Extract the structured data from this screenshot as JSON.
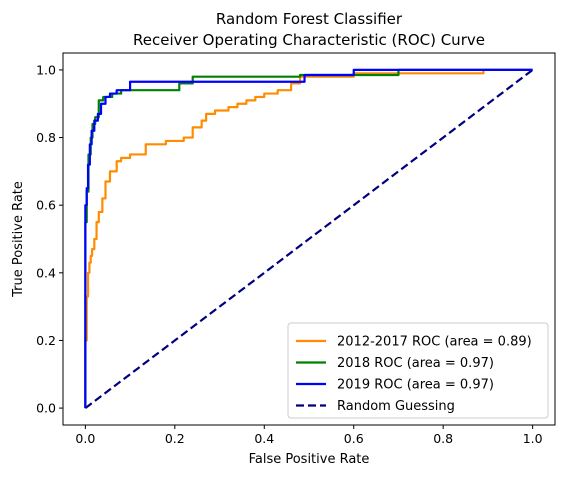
{
  "chart_data": {
    "type": "line",
    "title": [
      "Random Forest Classifier",
      "Receiver Operating Characteristic (ROC) Curve"
    ],
    "xlabel": "False Positive Rate",
    "ylabel": "True Positive Rate",
    "xlim": [
      -0.05,
      1.05
    ],
    "ylim": [
      -0.05,
      1.05
    ],
    "xticks": [
      0.0,
      0.2,
      0.4,
      0.6,
      0.8,
      1.0
    ],
    "xtick_labels": [
      "0.0",
      "0.2",
      "0.4",
      "0.6",
      "0.8",
      "1.0"
    ],
    "yticks": [
      0.0,
      0.2,
      0.4,
      0.6,
      0.8,
      1.0
    ],
    "ytick_labels": [
      "0.0",
      "0.2",
      "0.4",
      "0.6",
      "0.8",
      "1.0"
    ],
    "grid": false,
    "legend_position": "bottom-right",
    "series": [
      {
        "name": "2012-2017 ROC (area = 0.89)",
        "color": "#ff8c00",
        "style": "solid",
        "x": [
          0,
          0,
          0.003,
          0.003,
          0.006,
          0.006,
          0.009,
          0.009,
          0.012,
          0.012,
          0.015,
          0.015,
          0.02,
          0.02,
          0.025,
          0.025,
          0.03,
          0.03,
          0.038,
          0.038,
          0.045,
          0.045,
          0.055,
          0.055,
          0.07,
          0.07,
          0.08,
          0.08,
          0.1,
          0.1,
          0.135,
          0.135,
          0.18,
          0.18,
          0.22,
          0.22,
          0.24,
          0.24,
          0.26,
          0.26,
          0.27,
          0.27,
          0.29,
          0.29,
          0.32,
          0.32,
          0.34,
          0.34,
          0.36,
          0.36,
          0.38,
          0.38,
          0.4,
          0.4,
          0.43,
          0.43,
          0.46,
          0.46,
          0.48,
          0.48,
          0.6,
          0.6,
          0.7,
          0.7,
          0.89,
          0.89,
          1.0
        ],
        "y": [
          0,
          0.2,
          0.2,
          0.33,
          0.33,
          0.4,
          0.4,
          0.43,
          0.43,
          0.45,
          0.45,
          0.47,
          0.47,
          0.5,
          0.5,
          0.55,
          0.55,
          0.58,
          0.58,
          0.62,
          0.62,
          0.67,
          0.67,
          0.7,
          0.7,
          0.73,
          0.73,
          0.74,
          0.74,
          0.75,
          0.75,
          0.78,
          0.78,
          0.79,
          0.79,
          0.8,
          0.8,
          0.83,
          0.83,
          0.85,
          0.85,
          0.87,
          0.87,
          0.88,
          0.88,
          0.89,
          0.89,
          0.9,
          0.9,
          0.91,
          0.91,
          0.92,
          0.92,
          0.93,
          0.93,
          0.94,
          0.94,
          0.96,
          0.96,
          0.98,
          0.98,
          0.99,
          0.99,
          0.99,
          0.99,
          1.0,
          1.0
        ]
      },
      {
        "name": "2018 ROC (area = 0.97)",
        "color": "#008000",
        "style": "solid",
        "x": [
          0,
          0,
          0.003,
          0.003,
          0.007,
          0.007,
          0.012,
          0.012,
          0.016,
          0.016,
          0.022,
          0.022,
          0.03,
          0.03,
          0.04,
          0.04,
          0.06,
          0.06,
          0.08,
          0.08,
          0.21,
          0.21,
          0.24,
          0.24,
          0.48,
          0.48,
          0.7,
          0.7,
          1.0
        ],
        "y": [
          0,
          0.55,
          0.55,
          0.64,
          0.64,
          0.75,
          0.75,
          0.8,
          0.8,
          0.84,
          0.84,
          0.86,
          0.86,
          0.91,
          0.91,
          0.92,
          0.92,
          0.93,
          0.93,
          0.94,
          0.94,
          0.96,
          0.96,
          0.98,
          0.98,
          0.985,
          0.985,
          1.0,
          1.0
        ]
      },
      {
        "name": "2019 ROC (area = 0.97)",
        "color": "#0000ff",
        "style": "solid",
        "x": [
          0,
          0,
          0.003,
          0.003,
          0.006,
          0.006,
          0.01,
          0.01,
          0.014,
          0.014,
          0.02,
          0.02,
          0.028,
          0.028,
          0.035,
          0.035,
          0.045,
          0.045,
          0.055,
          0.055,
          0.07,
          0.07,
          0.1,
          0.1,
          0.49,
          0.49,
          0.6,
          0.6,
          1.0
        ],
        "y": [
          0,
          0.6,
          0.6,
          0.65,
          0.65,
          0.72,
          0.72,
          0.78,
          0.78,
          0.82,
          0.82,
          0.85,
          0.85,
          0.87,
          0.87,
          0.9,
          0.9,
          0.92,
          0.92,
          0.93,
          0.93,
          0.94,
          0.94,
          0.965,
          0.965,
          0.985,
          0.985,
          1.0,
          1.0
        ]
      },
      {
        "name": "Random Guessing",
        "color": "#000080",
        "style": "dashed",
        "x": [
          0,
          1
        ],
        "y": [
          0,
          1
        ]
      }
    ]
  }
}
